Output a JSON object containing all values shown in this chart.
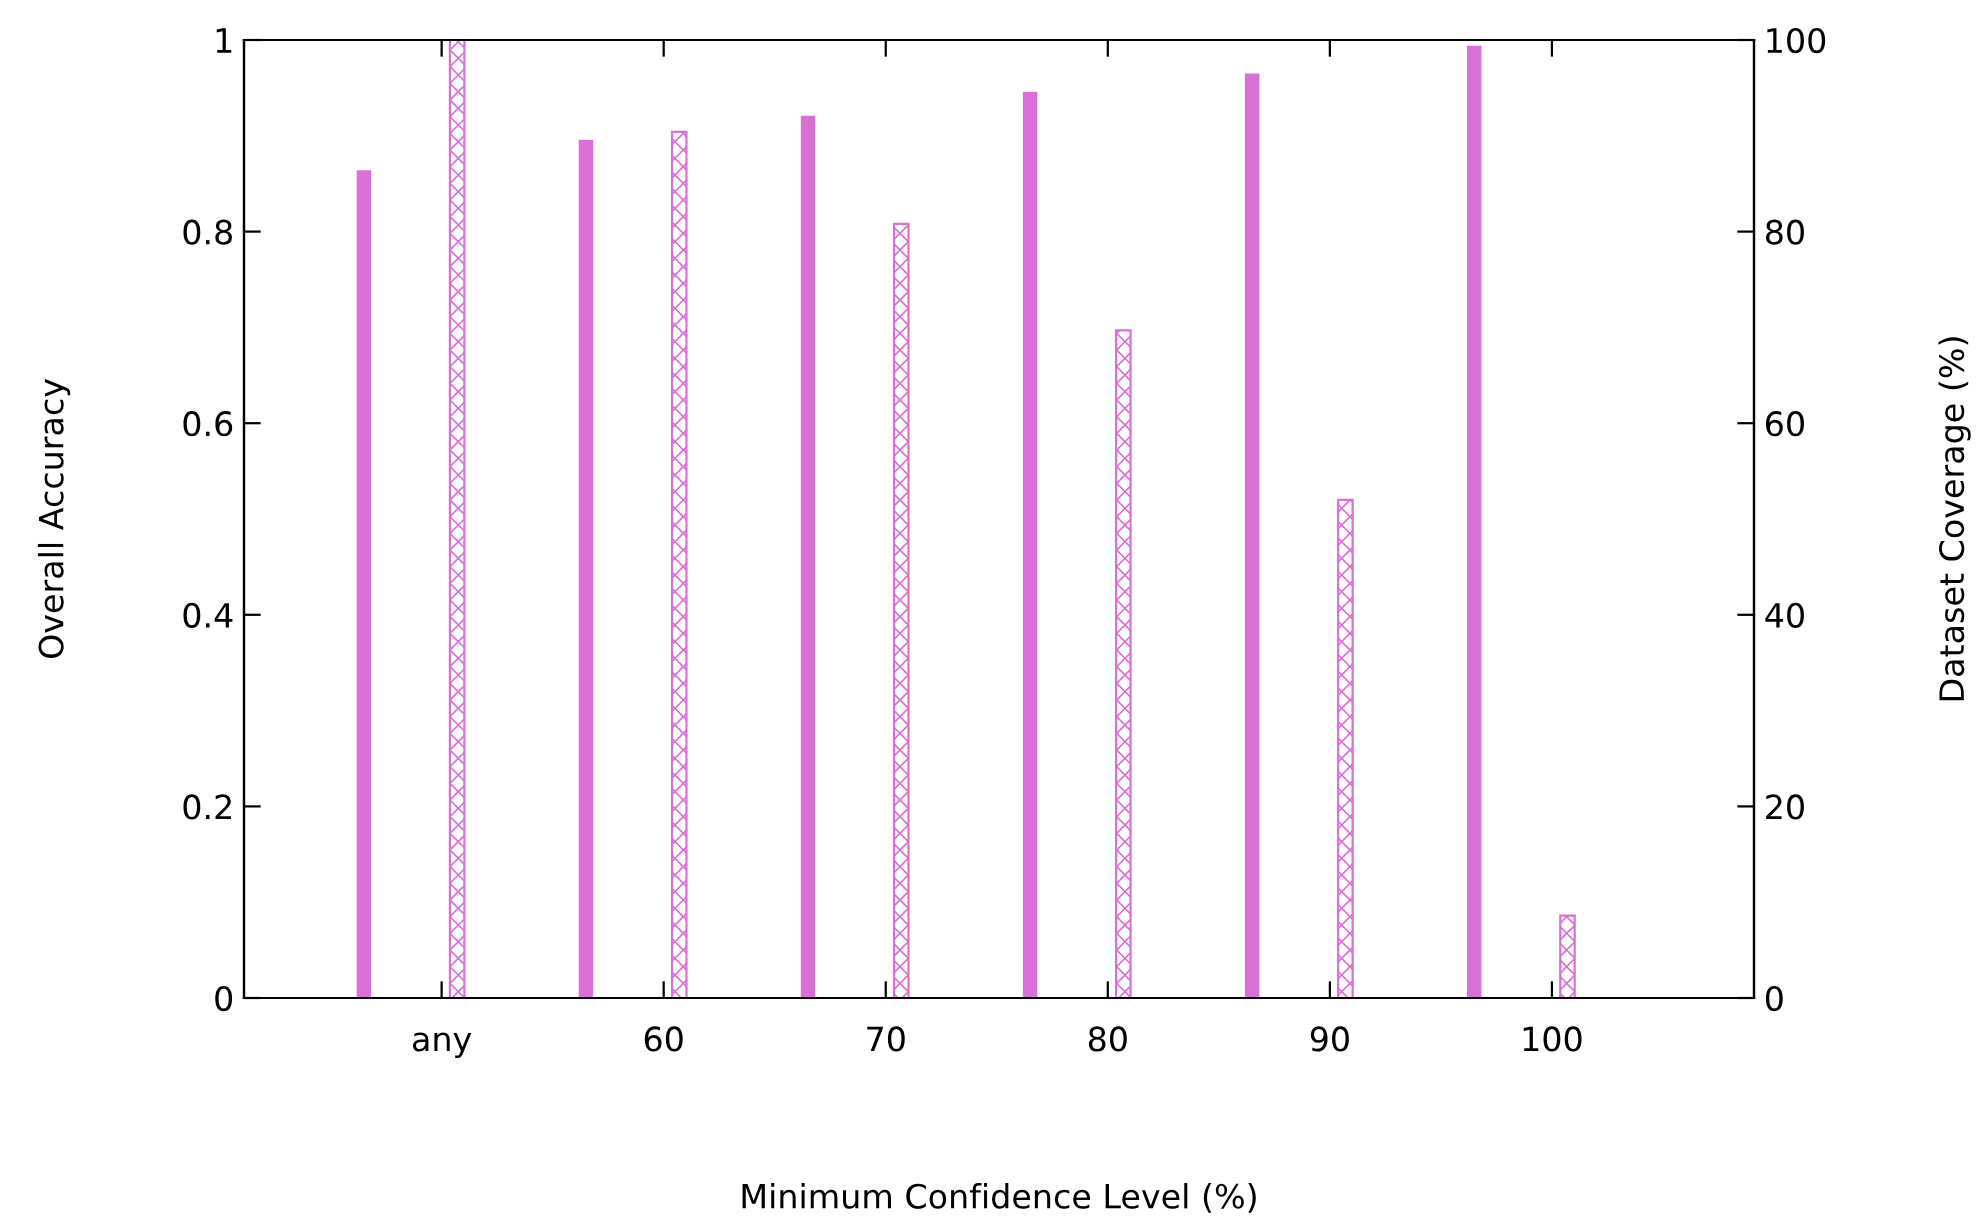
{
  "chart_data": {
    "type": "bar",
    "categories": [
      "any",
      "60",
      "70",
      "80",
      "90",
      "100"
    ],
    "xlabel": "Minimum Confidence Level (%)",
    "ylabel": "Overall Accuracy",
    "y2label": "Dataset Coverage (%)",
    "series": [
      {
        "color": "#da70d6",
        "values": [
          0.864,
          0.896,
          0.921,
          0.946,
          0.965,
          0.994
        ]
      },
      {
        "color": "#da70d6",
        "axis": "y2",
        "values": [
          100,
          90.4,
          80.8,
          69.7,
          52.0,
          8.6
        ]
      }
    ],
    "ylim": [
      0,
      1
    ],
    "yticks": [
      0,
      0.2,
      0.4,
      0.6,
      0.8,
      1
    ],
    "y2lim": [
      0,
      100
    ],
    "y2ticks": [
      0,
      20,
      40,
      60,
      80,
      100
    ],
    "grid": false,
    "legend": false
  }
}
